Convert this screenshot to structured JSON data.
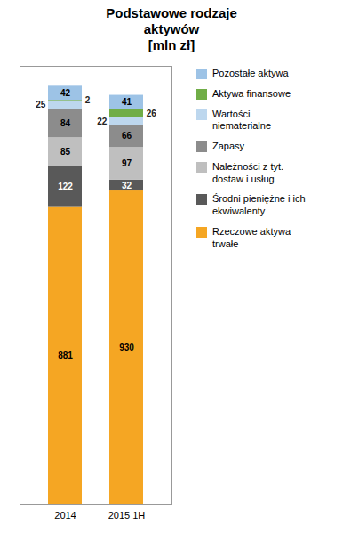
{
  "chart_data": {
    "type": "bar",
    "title": "Podstawowe rodzaje\naktywów\n[mln zł]",
    "categories": [
      "2014",
      "2015 1H"
    ],
    "series": [
      {
        "name": "Rzeczowe aktywa\ntrwałe",
        "color": "#F5A623",
        "values": [
          881,
          930
        ]
      },
      {
        "name": "Środni pieniężne i ich\nekwiwalenty",
        "color": "#595959",
        "values": [
          122,
          32
        ]
      },
      {
        "name": "Należności z tyt.\ndostaw i usług",
        "color": "#BFBFBF",
        "values": [
          85,
          97
        ]
      },
      {
        "name": "Zapasy",
        "color": "#8C8C8C",
        "values": [
          84,
          66
        ]
      },
      {
        "name": "Wartości\nniematerialne",
        "color": "#BDD7EE",
        "values": [
          25,
          22
        ]
      },
      {
        "name": "Aktywa finansowe",
        "color": "#70AD47",
        "values": [
          2,
          26
        ]
      },
      {
        "name": "Pozostałe aktywa",
        "color": "#9DC3E6",
        "values": [
          42,
          41
        ]
      }
    ],
    "ylim": [
      0,
      1300
    ],
    "stacked": true,
    "data_labels": true,
    "tick_labels": "x",
    "legend": "right"
  }
}
